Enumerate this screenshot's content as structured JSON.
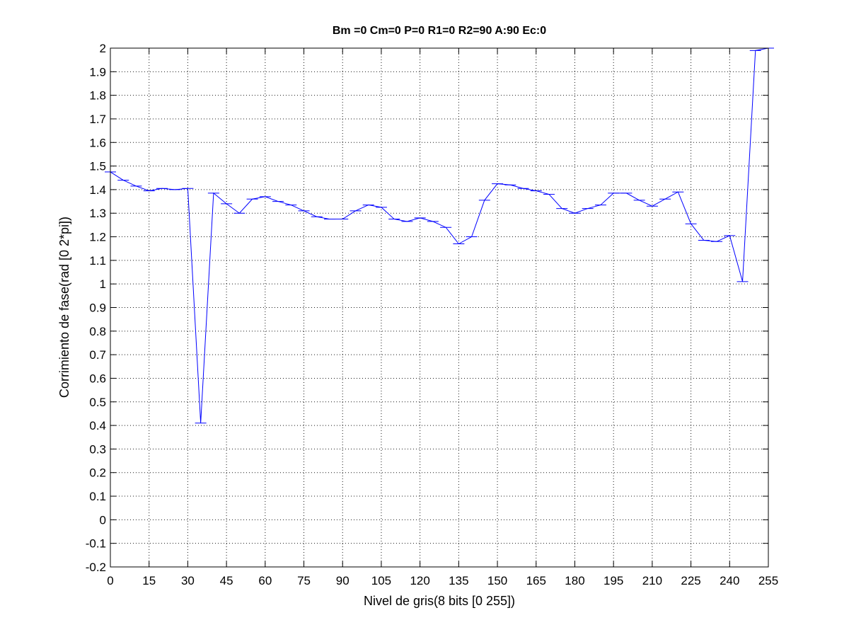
{
  "chart_data": {
    "type": "line",
    "title": "Bm =0  Cm=0  P=0  R1=0  R2=90  A:90  Ec:0",
    "xlabel": "Nivel de gris(8 bits [0 255])",
    "ylabel": "Corrimiento de fase(rad [0 2*pi])",
    "xlim": [
      0,
      255
    ],
    "ylim": [
      -0.2,
      2
    ],
    "xticks": [
      0,
      15,
      30,
      45,
      60,
      75,
      90,
      105,
      120,
      135,
      150,
      165,
      180,
      195,
      210,
      225,
      240,
      255
    ],
    "yticks": [
      -0.2,
      -0.1,
      0,
      0.1,
      0.2,
      0.3,
      0.4,
      0.5,
      0.6,
      0.7,
      0.8,
      0.9,
      1,
      1.1,
      1.2,
      1.3,
      1.4,
      1.5,
      1.6,
      1.7,
      1.8,
      1.9,
      2
    ],
    "grid": true,
    "line_color": "#0000ff",
    "errorbar_color": "#0000ff",
    "series": [
      {
        "x": [
          0,
          5,
          10,
          15,
          20,
          25,
          30,
          35,
          40,
          45,
          50,
          55,
          60,
          65,
          70,
          75,
          80,
          85,
          90,
          95,
          100,
          105,
          110,
          115,
          120,
          125,
          130,
          135,
          140,
          145,
          150,
          155,
          160,
          165,
          170,
          175,
          180,
          185,
          190,
          195,
          200,
          205,
          210,
          215,
          220,
          225,
          230,
          235,
          240,
          245,
          250,
          255
        ],
        "y": [
          1.475,
          1.44,
          1.415,
          1.395,
          1.405,
          1.4,
          1.405,
          0.41,
          1.385,
          1.34,
          1.3,
          1.36,
          1.37,
          1.35,
          1.335,
          1.31,
          1.285,
          1.275,
          1.275,
          1.31,
          1.335,
          1.325,
          1.275,
          1.265,
          1.28,
          1.265,
          1.24,
          1.17,
          1.2,
          1.355,
          1.425,
          1.42,
          1.405,
          1.395,
          1.38,
          1.32,
          1.3,
          1.32,
          1.335,
          1.385,
          1.385,
          1.355,
          1.33,
          1.36,
          1.39,
          1.255,
          1.185,
          1.18,
          1.205,
          1.01,
          1.99,
          2.0
        ]
      }
    ]
  }
}
